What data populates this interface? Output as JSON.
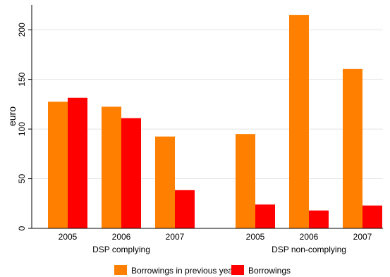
{
  "chart_data": {
    "type": "bar",
    "ylabel": "euro",
    "ylim": [
      0,
      225
    ],
    "yticks": [
      0,
      50,
      100,
      150,
      200
    ],
    "grid": true,
    "legend_position": "bottom",
    "groups": [
      {
        "label": "DSP complying",
        "categories": [
          "2005",
          "2006",
          "2007"
        ]
      },
      {
        "label": "DSP non-complying",
        "categories": [
          "2005",
          "2006",
          "2007"
        ]
      }
    ],
    "series": [
      {
        "name": "Borrowings in previous year",
        "color": "#ff8000",
        "values": [
          127.5,
          122.5,
          92.5,
          95,
          215,
          160.5
        ]
      },
      {
        "name": "Borrowings",
        "color": "#ff0000",
        "values": [
          131.5,
          111,
          38.5,
          24,
          18,
          23
        ]
      }
    ]
  }
}
